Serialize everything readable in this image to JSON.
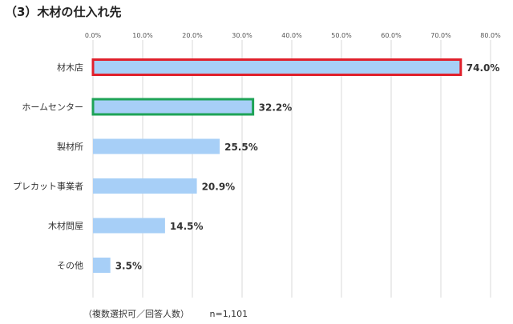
{
  "title": "（3）木材の仕入れ先",
  "footnote": {
    "note": "（複数選択可／回答人数）",
    "n": "n=1,101"
  },
  "colors": {
    "bar": "#a7cff7",
    "highlight_red": "#e0202b",
    "highlight_green": "#1ea357",
    "grid": "#d9d9d9"
  },
  "chart_data": {
    "type": "bar",
    "orientation": "horizontal",
    "title": "（3）木材の仕入れ先",
    "categories": [
      "材木店",
      "ホームセンター",
      "製材所",
      "プレカット事業者",
      "木材問屋",
      "その他"
    ],
    "values": [
      74.0,
      32.2,
      25.5,
      20.9,
      14.5,
      3.5
    ],
    "value_labels": [
      "74.0%",
      "32.2%",
      "25.5%",
      "20.9%",
      "14.5%",
      "3.5%"
    ],
    "highlights": [
      "red",
      "green",
      null,
      null,
      null,
      null
    ],
    "xlim": [
      0,
      80
    ],
    "xticks": [
      "0.0%",
      "10.0%",
      "20.0%",
      "30.0%",
      "40.0%",
      "50.0%",
      "60.0%",
      "70.0%",
      "80.0%"
    ],
    "grid": true,
    "legend": "none"
  }
}
